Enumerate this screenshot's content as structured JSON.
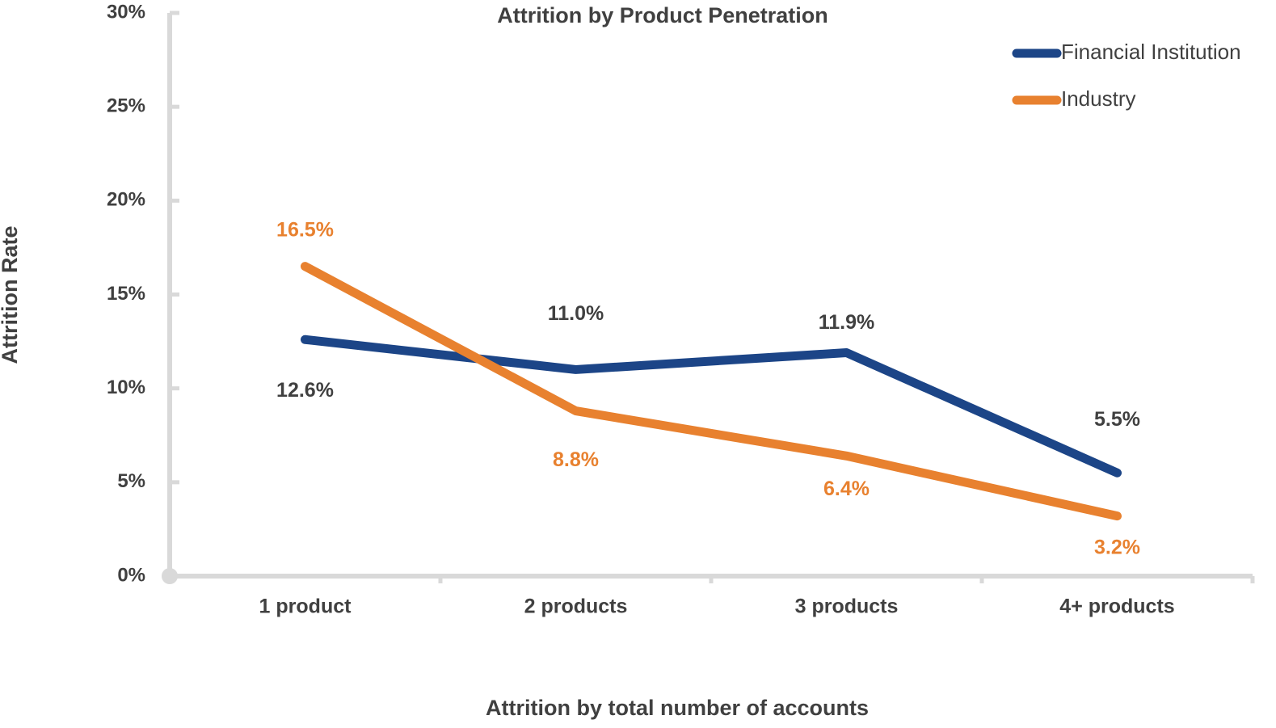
{
  "chart_data": {
    "type": "line",
    "title": "Attrition by Product Penetration",
    "x_label": "Attrition by total number of accounts",
    "y_label": "Attrition Rate",
    "categories": [
      "1 product",
      "2 products",
      "3 products",
      "4+ products"
    ],
    "series": [
      {
        "name": "Financial Institution",
        "color": "#1c4587",
        "values": [
          12.6,
          11.0,
          11.9,
          5.5
        ],
        "value_labels": [
          "12.6%",
          "11.0%",
          "11.9%",
          "5.5%"
        ],
        "label_color": "#404040"
      },
      {
        "name": "Industry",
        "color": "#e8812f",
        "values": [
          16.5,
          8.8,
          6.4,
          3.2
        ],
        "value_labels": [
          "16.5%",
          "8.8%",
          "6.4%",
          "3.2%"
        ],
        "label_color": "#e8812f"
      }
    ],
    "ylim": [
      0,
      30
    ],
    "yticks": [
      {
        "value": 0,
        "label": "0%"
      },
      {
        "value": 5,
        "label": "5%"
      },
      {
        "value": 10,
        "label": "10%"
      },
      {
        "value": 15,
        "label": "15%"
      },
      {
        "value": 20,
        "label": "20%"
      },
      {
        "value": 25,
        "label": "25%"
      },
      {
        "value": 30,
        "label": "30%"
      }
    ],
    "legend": "top-right",
    "grid": false
  }
}
